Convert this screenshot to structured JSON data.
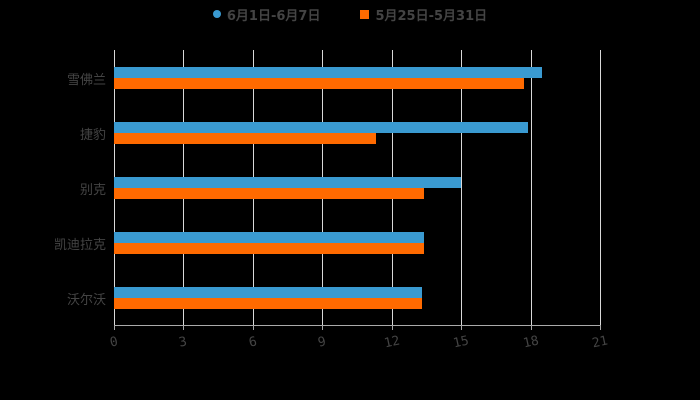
{
  "chart_data": {
    "type": "bar",
    "orientation": "horizontal",
    "title": "",
    "xlabel": "",
    "ylabel": "",
    "categories": [
      "雪佛兰",
      "捷豹",
      "别克",
      "凯迪拉克",
      "沃尔沃"
    ],
    "series": [
      {
        "name": "6月1日-6月7日",
        "color": "#3a9ad1",
        "values": [
          18.5,
          17.9,
          15.0,
          13.4,
          13.3
        ]
      },
      {
        "name": "5月25日-5月31日",
        "color": "#ff6a00",
        "values": [
          17.7,
          11.3,
          13.4,
          13.4,
          13.3
        ]
      }
    ],
    "xlim": [
      0,
      21
    ],
    "xticks": [
      "0",
      "3",
      "6",
      "9",
      "12",
      "15",
      "18",
      "21"
    ],
    "grid": true,
    "legend_position": "top"
  },
  "legend": {
    "items": [
      {
        "label": "6月1日-6月7日",
        "marker": "circle",
        "color": "#3a9ad1"
      },
      {
        "label": "5月25日-5月31日",
        "marker": "square",
        "color": "#ff6a00"
      }
    ]
  }
}
